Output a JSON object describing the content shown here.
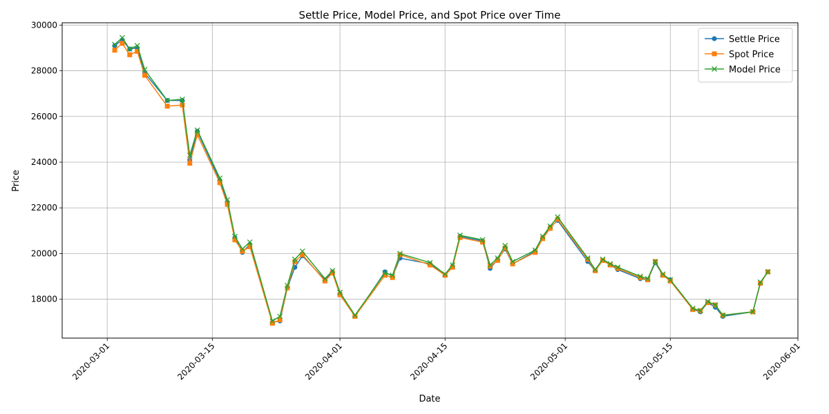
{
  "chart_data": {
    "type": "line",
    "title": "Settle Price, Model Price, and Spot Price over Time",
    "xlabel": "Date",
    "ylabel": "Price",
    "xlim": [
      "2020-02-24",
      "2020-06-01"
    ],
    "ylim": [
      16300,
      30100
    ],
    "x_ticks": [
      "2020-03-01",
      "2020-03-15",
      "2020-04-01",
      "2020-04-15",
      "2020-05-01",
      "2020-05-15",
      "2020-06-01"
    ],
    "y_ticks": [
      18000,
      20000,
      22000,
      24000,
      26000,
      28000,
      30000
    ],
    "grid": true,
    "legend_position": "top-right",
    "x": [
      "2020-03-02",
      "2020-03-03",
      "2020-03-04",
      "2020-03-05",
      "2020-03-06",
      "2020-03-09",
      "2020-03-11",
      "2020-03-12",
      "2020-03-13",
      "2020-03-16",
      "2020-03-17",
      "2020-03-18",
      "2020-03-19",
      "2020-03-20",
      "2020-03-23",
      "2020-03-24",
      "2020-03-25",
      "2020-03-26",
      "2020-03-27",
      "2020-03-30",
      "2020-03-31",
      "2020-04-01",
      "2020-04-03",
      "2020-04-07",
      "2020-04-08",
      "2020-04-09",
      "2020-04-13",
      "2020-04-15",
      "2020-04-16",
      "2020-04-17",
      "2020-04-20",
      "2020-04-21",
      "2020-04-22",
      "2020-04-23",
      "2020-04-24",
      "2020-04-27",
      "2020-04-28",
      "2020-04-29",
      "2020-04-30",
      "2020-05-04",
      "2020-05-05",
      "2020-05-06",
      "2020-05-07",
      "2020-05-08",
      "2020-05-11",
      "2020-05-12",
      "2020-05-13",
      "2020-05-14",
      "2020-05-15",
      "2020-05-18",
      "2020-05-19",
      "2020-05-20",
      "2020-05-21",
      "2020-05-22",
      "2020-05-26",
      "2020-05-27",
      "2020-05-28"
    ],
    "series": [
      {
        "name": "Settle Price",
        "marker": "circle",
        "color": "#1f77b4",
        "values": [
          29100,
          29350,
          28950,
          29000,
          27900,
          26700,
          26700,
          24100,
          25350,
          23200,
          22250,
          20700,
          20050,
          20400,
          17000,
          17050,
          18500,
          19400,
          19900,
          18850,
          19200,
          18250,
          17250,
          19200,
          19000,
          19800,
          19550,
          19050,
          19450,
          20750,
          20550,
          19350,
          19750,
          20200,
          19550,
          20100,
          20700,
          21150,
          21450,
          19650,
          19250,
          19700,
          19500,
          19300,
          18900,
          18850,
          19600,
          19050,
          18850,
          17550,
          17450,
          17850,
          17650,
          17250,
          17450,
          18700,
          19200
        ]
      },
      {
        "name": "Spot Price",
        "marker": "square",
        "color": "#ff7f0e",
        "values": [
          28900,
          29200,
          28700,
          28850,
          27800,
          26450,
          26500,
          23950,
          25200,
          23100,
          22150,
          20600,
          20100,
          20300,
          16950,
          17100,
          18500,
          19650,
          19950,
          18800,
          19150,
          18200,
          17250,
          19050,
          18950,
          19950,
          19500,
          19050,
          19400,
          20700,
          20500,
          19450,
          19700,
          20250,
          19550,
          20050,
          20650,
          21100,
          21500,
          19750,
          19250,
          19700,
          19500,
          19350,
          18950,
          18850,
          19650,
          19050,
          18800,
          17550,
          17500,
          17850,
          17750,
          17300,
          17450,
          18700,
          19200
        ]
      },
      {
        "name": "Model Price",
        "marker": "x",
        "color": "#2ca02c",
        "values": [
          29150,
          29450,
          28950,
          29100,
          28050,
          26700,
          26750,
          24300,
          25400,
          23300,
          22350,
          20750,
          20200,
          20500,
          17050,
          17250,
          18600,
          19750,
          20100,
          18900,
          19250,
          18300,
          17300,
          19150,
          19050,
          20000,
          19600,
          19100,
          19500,
          20800,
          20600,
          19500,
          19800,
          20350,
          19650,
          20150,
          20750,
          21200,
          21600,
          19800,
          19300,
          19750,
          19550,
          19400,
          19000,
          18900,
          19650,
          19100,
          18850,
          17600,
          17500,
          17900,
          17750,
          17300,
          17450,
          18750,
          19200
        ]
      }
    ]
  }
}
